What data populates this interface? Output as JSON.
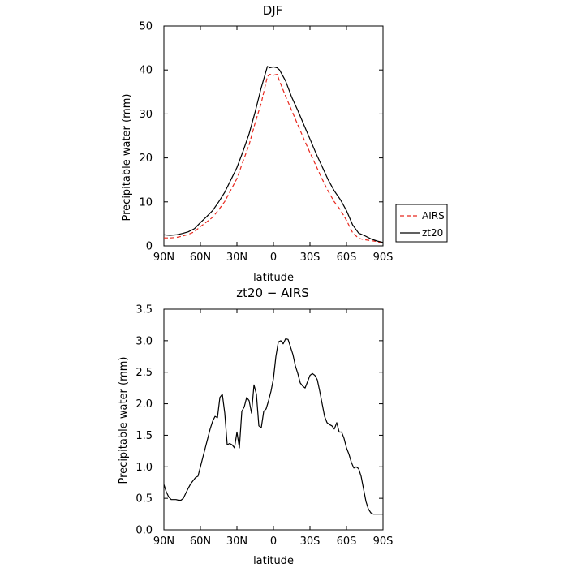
{
  "chart_data": [
    {
      "type": "line",
      "title": "DJF",
      "xlabel": "latitude",
      "ylabel": "Precipitable water (mm)",
      "xlim": [
        90,
        -90
      ],
      "ylim": [
        0,
        50
      ],
      "x_ticks": [
        90,
        60,
        30,
        0,
        -30,
        -60,
        -90
      ],
      "x_tick_labels": [
        "90N",
        "60N",
        "30N",
        "0",
        "30S",
        "60S",
        "90S"
      ],
      "y_ticks": [
        0,
        10,
        20,
        30,
        40,
        50
      ],
      "y_tick_labels": [
        "0",
        "10",
        "20",
        "30",
        "40",
        "50"
      ],
      "legend_position": "right",
      "grid": false,
      "series": [
        {
          "name": "AIRS",
          "color": "#e8281e",
          "dash": "dashed",
          "x": [
            90,
            85,
            80,
            75,
            70,
            65,
            60,
            55,
            50,
            45,
            40,
            35,
            30,
            25,
            20,
            15,
            10,
            5,
            3,
            0,
            -3,
            -5,
            -10,
            -15,
            -20,
            -25,
            -30,
            -35,
            -40,
            -45,
            -50,
            -55,
            -60,
            -65,
            -70,
            -75,
            -80,
            -85,
            -90
          ],
          "y": [
            1.8,
            1.8,
            1.9,
            2.2,
            2.6,
            3.2,
            4.4,
            5.4,
            6.5,
            8.2,
            10.1,
            12.7,
            15.3,
            19.2,
            23.0,
            28.0,
            32.5,
            38.5,
            39.0,
            38.8,
            39.0,
            37.5,
            34.0,
            30.8,
            27.5,
            24.3,
            21.2,
            18.2,
            15.2,
            12.4,
            10.0,
            8.2,
            5.8,
            3.0,
            1.7,
            1.4,
            1.2,
            1.0,
            0.6
          ]
        },
        {
          "name": "zt20",
          "color": "#000000",
          "dash": "solid",
          "x": [
            90,
            85,
            80,
            75,
            70,
            65,
            60,
            55,
            50,
            45,
            40,
            35,
            30,
            25,
            20,
            15,
            10,
            5,
            3,
            0,
            -3,
            -5,
            -10,
            -15,
            -20,
            -25,
            -30,
            -35,
            -40,
            -45,
            -50,
            -55,
            -60,
            -65,
            -70,
            -75,
            -80,
            -85,
            -90
          ],
          "y": [
            2.5,
            2.4,
            2.5,
            2.8,
            3.2,
            3.9,
            5.3,
            6.6,
            8.0,
            10.0,
            12.2,
            15.0,
            17.8,
            21.5,
            25.5,
            30.5,
            36.0,
            40.8,
            40.5,
            40.7,
            40.5,
            40.0,
            37.5,
            33.8,
            30.8,
            27.5,
            24.3,
            21.0,
            18.0,
            15.0,
            12.5,
            10.5,
            8.0,
            4.8,
            2.9,
            2.3,
            1.6,
            1.1,
            0.8
          ]
        }
      ]
    },
    {
      "type": "line",
      "title": "zt20 − AIRS",
      "xlabel": "latitude",
      "ylabel": "Precipitable water (mm)",
      "xlim": [
        90,
        -90
      ],
      "ylim": [
        0,
        3.5
      ],
      "x_ticks": [
        90,
        60,
        30,
        0,
        -30,
        -60,
        -90
      ],
      "x_tick_labels": [
        "90N",
        "60N",
        "30N",
        "0",
        "30S",
        "60S",
        "90S"
      ],
      "y_ticks": [
        0,
        0.5,
        1.0,
        1.5,
        2.0,
        2.5,
        3.0,
        3.5
      ],
      "y_tick_labels": [
        "0.0",
        "0.5",
        "1.0",
        "1.5",
        "2.0",
        "2.5",
        "3.0",
        "3.5"
      ],
      "grid": false,
      "series": [
        {
          "color": "#000000",
          "dash": "solid",
          "x": [
            90,
            88,
            86,
            84,
            82,
            80,
            78,
            76,
            74,
            72,
            70,
            68,
            66,
            64,
            62,
            60,
            58,
            56,
            54,
            52,
            50,
            48,
            46,
            44,
            42,
            40,
            38,
            36,
            34,
            32,
            30,
            28,
            26,
            24,
            22,
            20,
            18,
            16,
            14,
            12,
            10,
            8,
            6,
            4,
            2,
            0,
            -2,
            -4,
            -6,
            -8,
            -10,
            -12,
            -14,
            -16,
            -18,
            -20,
            -22,
            -24,
            -26,
            -28,
            -30,
            -32,
            -34,
            -36,
            -38,
            -40,
            -42,
            -44,
            -46,
            -48,
            -50,
            -52,
            -54,
            -56,
            -58,
            -60,
            -62,
            -64,
            -66,
            -68,
            -70,
            -72,
            -74,
            -76,
            -78,
            -80,
            -82,
            -84,
            -86,
            -88,
            -90
          ],
          "y": [
            0.72,
            0.6,
            0.52,
            0.48,
            0.48,
            0.48,
            0.47,
            0.47,
            0.5,
            0.58,
            0.66,
            0.73,
            0.78,
            0.83,
            0.85,
            1.0,
            1.15,
            1.3,
            1.45,
            1.6,
            1.72,
            1.8,
            1.78,
            2.1,
            2.15,
            1.85,
            1.35,
            1.37,
            1.35,
            1.3,
            1.55,
            1.3,
            1.88,
            1.95,
            2.1,
            2.05,
            1.85,
            2.3,
            2.15,
            1.65,
            1.62,
            1.88,
            1.92,
            2.05,
            2.2,
            2.4,
            2.75,
            2.98,
            3.0,
            2.95,
            3.03,
            3.02,
            2.9,
            2.78,
            2.6,
            2.48,
            2.33,
            2.28,
            2.25,
            2.35,
            2.45,
            2.48,
            2.45,
            2.38,
            2.2,
            2.0,
            1.8,
            1.7,
            1.67,
            1.65,
            1.6,
            1.7,
            1.55,
            1.55,
            1.45,
            1.3,
            1.2,
            1.07,
            0.98,
            1.0,
            0.97,
            0.85,
            0.65,
            0.45,
            0.33,
            0.27,
            0.25,
            0.25,
            0.25,
            0.25,
            0.25
          ]
        }
      ]
    }
  ]
}
